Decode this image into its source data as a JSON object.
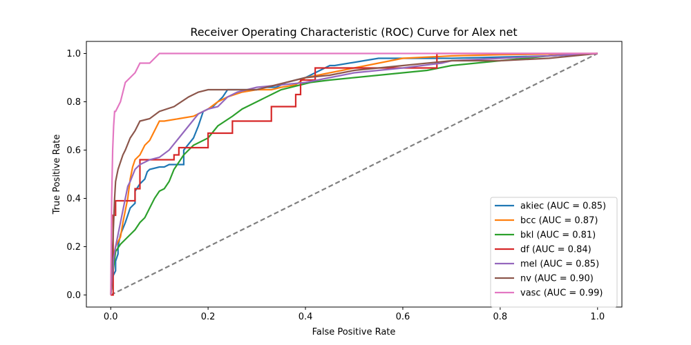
{
  "chart_data": {
    "type": "line",
    "title": "Receiver Operating Characteristic (ROC) Curve for Alex net",
    "xlabel": "False Positive Rate",
    "ylabel": "True Positive Rate",
    "xlim": [
      -0.05,
      1.05
    ],
    "ylim": [
      -0.05,
      1.05
    ],
    "xticks": [
      "0.0",
      "0.2",
      "0.4",
      "0.6",
      "0.8",
      "1.0"
    ],
    "yticks": [
      "0.0",
      "0.2",
      "0.4",
      "0.6",
      "0.8",
      "1.0"
    ],
    "legend_position": "lower right",
    "diagonal": {
      "x": [
        0,
        1
      ],
      "y": [
        0,
        1
      ],
      "color": "#7f7f7f",
      "style": "dashed"
    },
    "series": [
      {
        "name": "akiec (AUC = 0.85)",
        "color": "#1f77b4",
        "x": [
          0,
          0.003,
          0.005,
          0.01,
          0.01,
          0.015,
          0.015,
          0.02,
          0.03,
          0.035,
          0.04,
          0.05,
          0.05,
          0.06,
          0.07,
          0.075,
          0.08,
          0.1,
          0.11,
          0.12,
          0.15,
          0.15,
          0.17,
          0.18,
          0.19,
          0.2,
          0.21,
          0.22,
          0.23,
          0.24,
          0.26,
          0.28,
          0.3,
          0.32,
          0.34,
          0.35,
          0.36,
          0.38,
          0.4,
          0.45,
          0.46,
          0.52,
          0.55,
          0.7,
          0.9,
          1.0
        ],
        "y": [
          0,
          0.05,
          0.08,
          0.1,
          0.14,
          0.17,
          0.2,
          0.25,
          0.3,
          0.33,
          0.36,
          0.38,
          0.43,
          0.46,
          0.48,
          0.51,
          0.52,
          0.53,
          0.53,
          0.54,
          0.54,
          0.6,
          0.65,
          0.7,
          0.76,
          0.77,
          0.78,
          0.8,
          0.82,
          0.85,
          0.85,
          0.85,
          0.85,
          0.86,
          0.86,
          0.87,
          0.88,
          0.89,
          0.9,
          0.95,
          0.95,
          0.97,
          0.98,
          0.98,
          0.99,
          1.0
        ]
      },
      {
        "name": "bcc (AUC = 0.87)",
        "color": "#ff7f0e",
        "x": [
          0,
          0.002,
          0.005,
          0.008,
          0.01,
          0.02,
          0.025,
          0.03,
          0.035,
          0.04,
          0.045,
          0.05,
          0.06,
          0.07,
          0.08,
          0.09,
          0.1,
          0.11,
          0.14,
          0.17,
          0.2,
          0.22,
          0.24,
          0.27,
          0.3,
          0.33,
          0.35,
          0.38,
          0.4,
          0.45,
          0.5,
          0.55,
          0.6,
          0.7,
          0.8,
          1.0
        ],
        "y": [
          0,
          0.06,
          0.12,
          0.18,
          0.2,
          0.24,
          0.3,
          0.35,
          0.4,
          0.48,
          0.53,
          0.56,
          0.58,
          0.62,
          0.64,
          0.68,
          0.72,
          0.72,
          0.73,
          0.74,
          0.77,
          0.8,
          0.82,
          0.84,
          0.85,
          0.85,
          0.86,
          0.87,
          0.9,
          0.92,
          0.94,
          0.96,
          0.98,
          0.99,
          0.995,
          1.0
        ]
      },
      {
        "name": "bkl (AUC = 0.81)",
        "color": "#2ca02c",
        "x": [
          0,
          0.005,
          0.01,
          0.02,
          0.03,
          0.04,
          0.05,
          0.06,
          0.07,
          0.08,
          0.09,
          0.1,
          0.11,
          0.12,
          0.13,
          0.14,
          0.15,
          0.17,
          0.2,
          0.22,
          0.25,
          0.27,
          0.29,
          0.31,
          0.33,
          0.35,
          0.37,
          0.39,
          0.41,
          0.45,
          0.5,
          0.55,
          0.6,
          0.65,
          0.7,
          0.8,
          0.9,
          1.0
        ],
        "y": [
          0,
          0.1,
          0.18,
          0.21,
          0.23,
          0.25,
          0.27,
          0.3,
          0.32,
          0.36,
          0.4,
          0.43,
          0.44,
          0.47,
          0.52,
          0.55,
          0.58,
          0.62,
          0.65,
          0.7,
          0.74,
          0.77,
          0.79,
          0.81,
          0.83,
          0.85,
          0.86,
          0.87,
          0.88,
          0.89,
          0.9,
          0.91,
          0.92,
          0.93,
          0.95,
          0.97,
          0.99,
          1.0
        ]
      },
      {
        "name": "df (AUC = 0.84)",
        "color": "#d62728",
        "x": [
          0,
          0.005,
          0.005,
          0.01,
          0.01,
          0.05,
          0.05,
          0.06,
          0.06,
          0.13,
          0.13,
          0.14,
          0.14,
          0.2,
          0.2,
          0.25,
          0.25,
          0.33,
          0.33,
          0.38,
          0.38,
          0.39,
          0.39,
          0.42,
          0.42,
          0.67,
          0.67,
          1.0
        ],
        "y": [
          0,
          0,
          0.33,
          0.33,
          0.39,
          0.39,
          0.44,
          0.44,
          0.56,
          0.56,
          0.58,
          0.58,
          0.61,
          0.61,
          0.67,
          0.67,
          0.72,
          0.72,
          0.78,
          0.78,
          0.83,
          0.83,
          0.89,
          0.89,
          0.94,
          0.94,
          1.0,
          1.0
        ]
      },
      {
        "name": "mel (AUC = 0.85)",
        "color": "#9467bd",
        "x": [
          0,
          0.003,
          0.006,
          0.01,
          0.015,
          0.02,
          0.025,
          0.03,
          0.035,
          0.04,
          0.05,
          0.06,
          0.08,
          0.1,
          0.12,
          0.14,
          0.16,
          0.18,
          0.2,
          0.22,
          0.24,
          0.26,
          0.28,
          0.3,
          0.35,
          0.4,
          0.45,
          0.5,
          0.6,
          0.68,
          0.7,
          0.8,
          0.9,
          1.0
        ],
        "y": [
          0,
          0.08,
          0.15,
          0.2,
          0.25,
          0.3,
          0.35,
          0.4,
          0.45,
          0.47,
          0.52,
          0.54,
          0.56,
          0.57,
          0.6,
          0.65,
          0.7,
          0.75,
          0.77,
          0.78,
          0.82,
          0.84,
          0.85,
          0.86,
          0.87,
          0.88,
          0.9,
          0.92,
          0.94,
          0.96,
          0.97,
          0.98,
          0.99,
          1.0
        ]
      },
      {
        "name": "nv (AUC = 0.90)",
        "color": "#8c564b",
        "x": [
          0,
          0.002,
          0.004,
          0.006,
          0.008,
          0.01,
          0.015,
          0.02,
          0.025,
          0.03,
          0.04,
          0.05,
          0.06,
          0.08,
          0.1,
          0.13,
          0.16,
          0.18,
          0.2,
          0.25,
          0.3,
          0.32,
          0.36,
          0.4,
          0.45,
          0.5,
          0.6,
          0.7,
          0.8,
          0.9,
          1.0
        ],
        "y": [
          0,
          0.1,
          0.2,
          0.3,
          0.4,
          0.47,
          0.52,
          0.55,
          0.58,
          0.6,
          0.65,
          0.68,
          0.72,
          0.73,
          0.76,
          0.78,
          0.82,
          0.84,
          0.85,
          0.85,
          0.85,
          0.86,
          0.88,
          0.9,
          0.91,
          0.93,
          0.95,
          0.97,
          0.97,
          0.98,
          1.0
        ]
      },
      {
        "name": "vasc (AUC = 0.99)",
        "color": "#e377c2",
        "x": [
          0,
          0.002,
          0.004,
          0.006,
          0.008,
          0.01,
          0.02,
          0.025,
          0.03,
          0.04,
          0.05,
          0.06,
          0.07,
          0.08,
          0.1,
          0.2,
          0.4,
          0.6,
          0.8,
          1.0
        ],
        "y": [
          0,
          0.4,
          0.6,
          0.7,
          0.76,
          0.76,
          0.8,
          0.84,
          0.88,
          0.9,
          0.92,
          0.96,
          0.96,
          0.96,
          1.0,
          1.0,
          1.0,
          1.0,
          1.0,
          1.0
        ]
      }
    ]
  }
}
